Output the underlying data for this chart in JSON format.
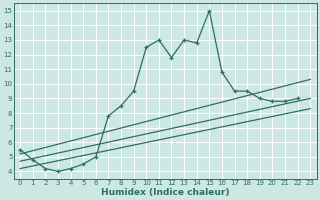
{
  "xlabel": "Humidex (Indice chaleur)",
  "bg_color": "#cde8e2",
  "line_color": "#2d6e63",
  "grid_color": "#b8d8d2",
  "xlim": [
    -0.5,
    23.5
  ],
  "ylim": [
    3.5,
    15.5
  ],
  "xticks": [
    0,
    1,
    2,
    3,
    4,
    5,
    6,
    7,
    8,
    9,
    10,
    11,
    12,
    13,
    14,
    15,
    16,
    17,
    18,
    19,
    20,
    21,
    22,
    23
  ],
  "yticks": [
    4,
    5,
    6,
    7,
    8,
    9,
    10,
    11,
    12,
    13,
    14,
    15
  ],
  "main_x": [
    0,
    1,
    2,
    3,
    4,
    5,
    6,
    7,
    8,
    9,
    10,
    11,
    12,
    13,
    14,
    15,
    16,
    17,
    18,
    19,
    20,
    21,
    22
  ],
  "main_y": [
    5.5,
    4.8,
    4.2,
    4.0,
    4.2,
    4.5,
    5.0,
    7.8,
    8.5,
    9.5,
    12.5,
    13.0,
    11.8,
    13.0,
    12.8,
    15.0,
    10.8,
    9.5,
    9.5,
    9.0,
    8.8,
    8.8,
    9.0
  ],
  "trend1_x": [
    0,
    23
  ],
  "trend1_y": [
    5.2,
    10.3
  ],
  "trend2_x": [
    0,
    23
  ],
  "trend2_y": [
    4.7,
    9.0
  ],
  "trend3_x": [
    0,
    23
  ],
  "trend3_y": [
    4.2,
    8.3
  ]
}
